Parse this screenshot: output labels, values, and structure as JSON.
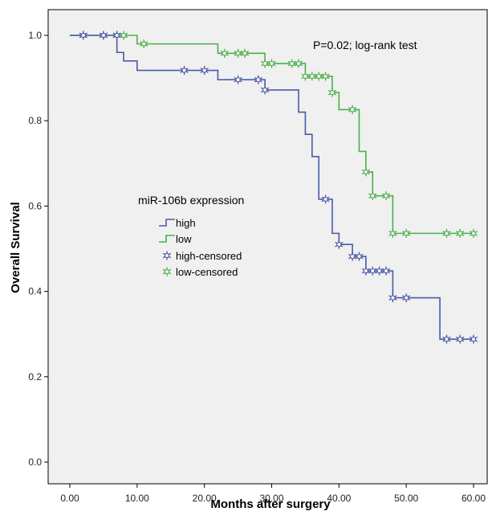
{
  "chart_data": {
    "type": "line",
    "subtype": "kaplan-meier step",
    "xlabel": "Months after surgery",
    "ylabel": "Overall Survival",
    "xlim": [
      0,
      60
    ],
    "ylim": [
      0,
      1.0
    ],
    "x_ticks": [
      "0.00",
      "10.00",
      "20.00",
      "30.00",
      "40.00",
      "50.00",
      "60.00"
    ],
    "x_tick_values": [
      0,
      10,
      20,
      30,
      40,
      50,
      60
    ],
    "y_ticks": [
      "0.0",
      "0.2",
      "0.4",
      "0.6",
      "0.8",
      "1.0"
    ],
    "y_tick_values": [
      0,
      0.2,
      0.4,
      0.6,
      0.8,
      1.0
    ],
    "grid": false,
    "annotation": "P=0.02;  log-rank test",
    "legend": {
      "title": "miR-106b expression",
      "position": "center-left",
      "entries": [
        "high",
        "low",
        "high-censored",
        "low-censored"
      ]
    },
    "colors": {
      "high": "#4a5aa8",
      "low": "#4ab04a"
    },
    "series": [
      {
        "name": "high",
        "steps": [
          [
            0,
            1.0
          ],
          [
            7,
            0.96
          ],
          [
            8,
            0.94
          ],
          [
            10,
            0.918
          ],
          [
            22,
            0.896
          ],
          [
            29,
            0.872
          ],
          [
            34,
            0.82
          ],
          [
            35,
            0.768
          ],
          [
            36,
            0.716
          ],
          [
            37,
            0.616
          ],
          [
            39,
            0.536
          ],
          [
            40,
            0.51
          ],
          [
            42,
            0.482
          ],
          [
            44,
            0.448
          ],
          [
            48,
            0.385
          ],
          [
            55,
            0.288
          ],
          [
            60,
            0.288
          ]
        ],
        "censored": [
          [
            2,
            1.0
          ],
          [
            5,
            1.0
          ],
          [
            7,
            1.0
          ],
          [
            17,
            0.918
          ],
          [
            20,
            0.918
          ],
          [
            25,
            0.896
          ],
          [
            28,
            0.896
          ],
          [
            29,
            0.872
          ],
          [
            38,
            0.616
          ],
          [
            40,
            0.51
          ],
          [
            42,
            0.482
          ],
          [
            43,
            0.482
          ],
          [
            44,
            0.448
          ],
          [
            45,
            0.448
          ],
          [
            46,
            0.448
          ],
          [
            47,
            0.448
          ],
          [
            48,
            0.385
          ],
          [
            50,
            0.385
          ],
          [
            56,
            0.288
          ],
          [
            58,
            0.288
          ],
          [
            60,
            0.288
          ]
        ]
      },
      {
        "name": "low",
        "steps": [
          [
            0,
            1.0
          ],
          [
            10,
            0.98
          ],
          [
            22,
            0.958
          ],
          [
            29,
            0.934
          ],
          [
            35,
            0.904
          ],
          [
            39,
            0.866
          ],
          [
            40,
            0.826
          ],
          [
            43,
            0.728
          ],
          [
            44,
            0.68
          ],
          [
            45,
            0.624
          ],
          [
            48,
            0.536
          ],
          [
            60,
            0.536
          ]
        ],
        "censored": [
          [
            2,
            1.0
          ],
          [
            5,
            1.0
          ],
          [
            7,
            1.0
          ],
          [
            8,
            1.0
          ],
          [
            11,
            0.98
          ],
          [
            23,
            0.958
          ],
          [
            25,
            0.958
          ],
          [
            26,
            0.958
          ],
          [
            29,
            0.934
          ],
          [
            30,
            0.934
          ],
          [
            33,
            0.934
          ],
          [
            34,
            0.934
          ],
          [
            35,
            0.904
          ],
          [
            36,
            0.904
          ],
          [
            37,
            0.904
          ],
          [
            38,
            0.904
          ],
          [
            39,
            0.866
          ],
          [
            42,
            0.826
          ],
          [
            44,
            0.68
          ],
          [
            45,
            0.624
          ],
          [
            47,
            0.624
          ],
          [
            48,
            0.536
          ],
          [
            50,
            0.536
          ],
          [
            56,
            0.536
          ],
          [
            58,
            0.536
          ],
          [
            60,
            0.536
          ]
        ]
      }
    ]
  }
}
